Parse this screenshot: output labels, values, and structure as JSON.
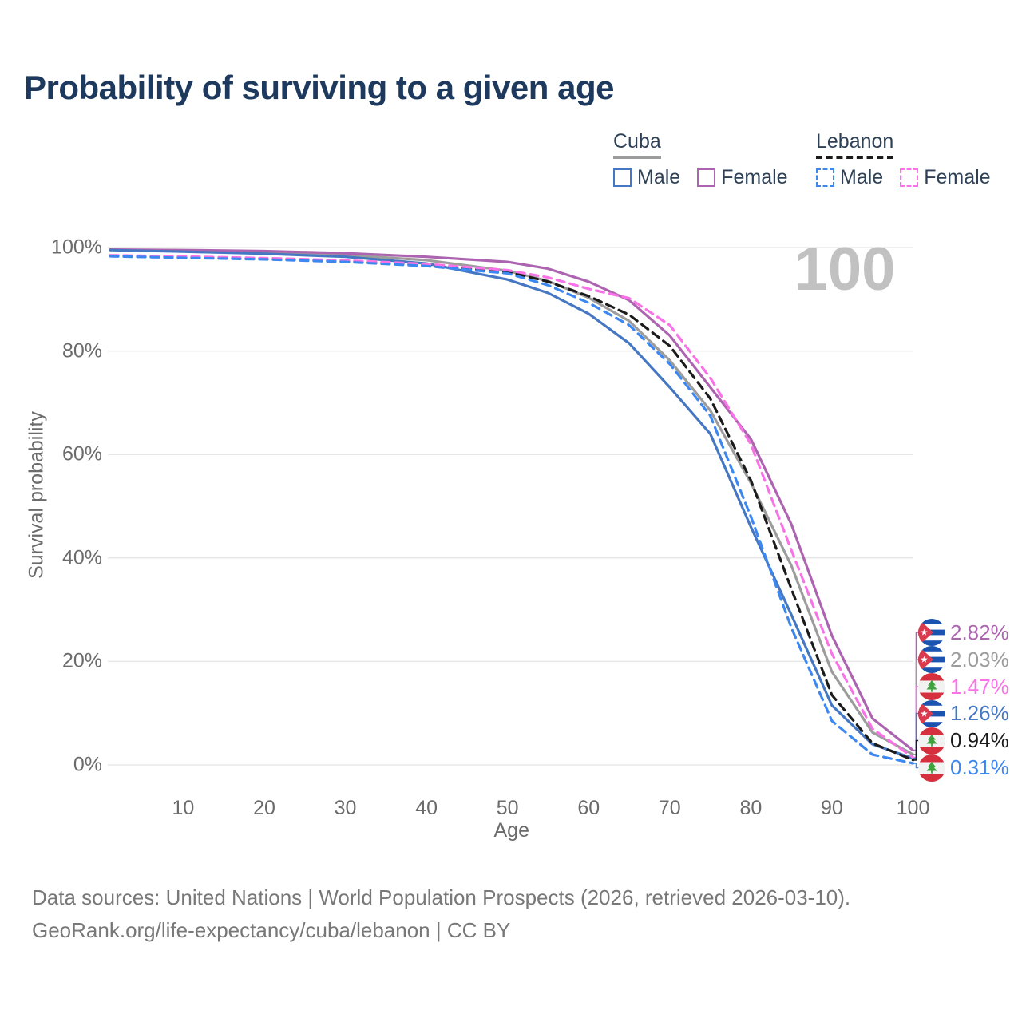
{
  "title": "Probability of surviving to a given age",
  "watermark": "100",
  "legend": {
    "groups": [
      {
        "label": "Cuba",
        "style": "solid",
        "rule_color": "#9c9c9c",
        "items": [
          {
            "label": "Male",
            "color": "#4577c2",
            "dashed": false
          },
          {
            "label": "Female",
            "color": "#ad64b0",
            "dashed": false
          }
        ]
      },
      {
        "label": "Lebanon",
        "style": "dashed",
        "rule_color": "#1b1b1b",
        "items": [
          {
            "label": "Male",
            "color": "#3d87f0",
            "dashed": true
          },
          {
            "label": "Female",
            "color": "#f973e6",
            "dashed": true
          }
        ]
      }
    ]
  },
  "chart_data": {
    "type": "line",
    "title": "Probability of surviving to a given age",
    "xlabel": "Age",
    "ylabel": "Survival probability",
    "xlim": [
      1,
      100
    ],
    "ylim": [
      0,
      100
    ],
    "grid": "horizontal",
    "legend_position": "top-right",
    "x_ticks": [
      {
        "label": "10",
        "value": 10
      },
      {
        "label": "20",
        "value": 20
      },
      {
        "label": "30",
        "value": 30
      },
      {
        "label": "40",
        "value": 40
      },
      {
        "label": "50",
        "value": 50
      },
      {
        "label": "60",
        "value": 60
      },
      {
        "label": "70",
        "value": 70
      },
      {
        "label": "80",
        "value": 80
      },
      {
        "label": "90",
        "value": 90
      },
      {
        "label": "100",
        "value": 100
      }
    ],
    "y_ticks": [
      {
        "label": "0%",
        "value": 0
      },
      {
        "label": "20%",
        "value": 20
      },
      {
        "label": "40%",
        "value": 40
      },
      {
        "label": "60%",
        "value": 60
      },
      {
        "label": "80%",
        "value": 80
      },
      {
        "label": "100%",
        "value": 100
      }
    ],
    "x": [
      1,
      10,
      20,
      30,
      40,
      50,
      55,
      60,
      65,
      70,
      75,
      80,
      85,
      90,
      95,
      100
    ],
    "series": [
      {
        "name": "Cuba (both sexes)",
        "country": "cuba",
        "color": "#9c9c9c",
        "dashed": false,
        "values": [
          99.55,
          99.35,
          99.05,
          98.55,
          97.55,
          95.5,
          93.5,
          90.3,
          85.8,
          78.2,
          68.5,
          54.5,
          38.5,
          18.0,
          6.3,
          2.03
        ]
      },
      {
        "name": "Cuba Female",
        "country": "cuba",
        "color": "#ad64b0",
        "dashed": false,
        "values": [
          99.6,
          99.5,
          99.3,
          98.9,
          98.2,
          97.2,
          95.9,
          93.4,
          89.8,
          83.0,
          73.0,
          63.0,
          46.5,
          25.0,
          9.0,
          2.82
        ]
      },
      {
        "name": "Cuba Male",
        "country": "cuba",
        "color": "#4577c2",
        "dashed": false,
        "values": [
          99.5,
          99.2,
          98.8,
          98.2,
          96.9,
          93.8,
          91.2,
          87.2,
          81.5,
          73.0,
          64.0,
          46.0,
          29.0,
          11.5,
          4.0,
          1.26
        ]
      },
      {
        "name": "Lebanon (both sexes)",
        "country": "lebanon",
        "color": "#1b1b1b",
        "dashed": true,
        "values": [
          98.4,
          98.1,
          97.8,
          97.35,
          96.6,
          95.3,
          93.4,
          90.6,
          87.0,
          81.0,
          70.8,
          55.0,
          34.0,
          13.5,
          4.2,
          0.94
        ]
      },
      {
        "name": "Lebanon Female",
        "country": "lebanon",
        "color": "#f973e6",
        "dashed": true,
        "values": [
          98.5,
          98.25,
          97.95,
          97.5,
          96.8,
          95.6,
          94.2,
          92.0,
          90.2,
          85.0,
          74.8,
          62.0,
          41.5,
          21.5,
          7.0,
          1.47
        ]
      },
      {
        "name": "Lebanon Male",
        "country": "lebanon",
        "color": "#3d87f0",
        "dashed": true,
        "values": [
          98.3,
          98.0,
          97.7,
          97.2,
          96.4,
          95.0,
          92.7,
          89.3,
          85.0,
          77.5,
          67.5,
          48.0,
          26.5,
          8.5,
          2.0,
          0.31
        ]
      }
    ],
    "end_labels": [
      {
        "value": "2.82%",
        "number": 2.82,
        "flag": "cuba",
        "series": "Cuba Female",
        "color": "#ad64b0"
      },
      {
        "value": "2.03%",
        "number": 2.03,
        "flag": "cuba",
        "series": "Cuba (both sexes)",
        "color": "#9c9c9c"
      },
      {
        "value": "1.47%",
        "number": 1.47,
        "flag": "lebanon",
        "series": "Lebanon Female",
        "color": "#f973e6"
      },
      {
        "value": "1.26%",
        "number": 1.26,
        "flag": "cuba",
        "series": "Cuba Male",
        "color": "#4577c2"
      },
      {
        "value": "0.94%",
        "number": 0.94,
        "flag": "lebanon",
        "series": "Lebanon (both sexes)",
        "color": "#1b1b1b"
      },
      {
        "value": "0.31%",
        "number": 0.31,
        "flag": "lebanon",
        "series": "Lebanon Male",
        "color": "#3d87f0"
      }
    ]
  },
  "footer": {
    "line1": "Data sources: United Nations | World Population Prospects (2026, retrieved 2026-03-10).",
    "line2": "GeoRank.org/life-expectancy/cuba/lebanon | CC BY"
  }
}
